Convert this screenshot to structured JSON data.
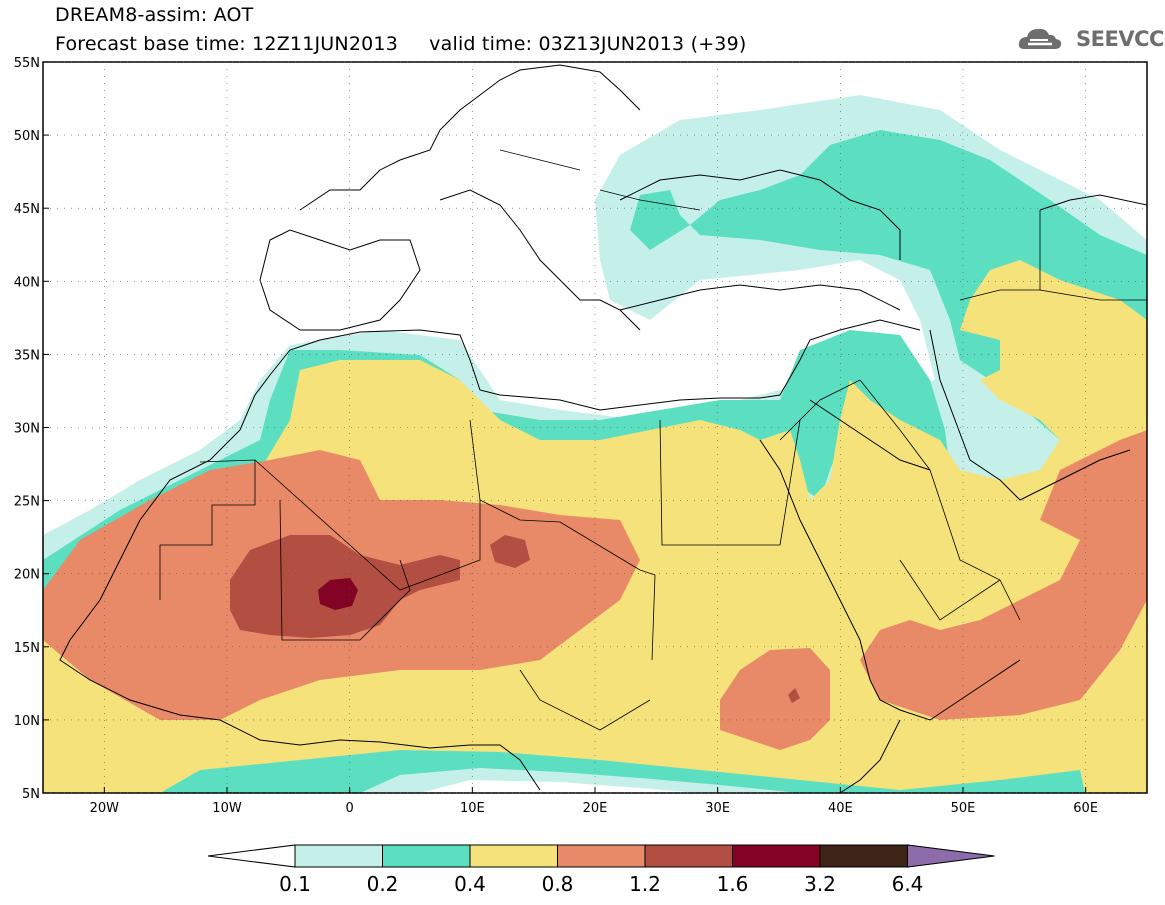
{
  "title": {
    "line1": "DREAM8-assim: AOT",
    "line2": "Forecast base time: 12Z11JUN2013     valid time: 03Z13JUN2013 (+39)"
  },
  "logo": {
    "text": "SEEVCCC",
    "icon": "cloud-icon"
  },
  "map": {
    "lon_range": [
      -25,
      65
    ],
    "lat_range": [
      5,
      55
    ],
    "lat_ticks": [
      {
        "value": 55,
        "label": "55N"
      },
      {
        "value": 50,
        "label": "50N"
      },
      {
        "value": 45,
        "label": "45N"
      },
      {
        "value": 40,
        "label": "40N"
      },
      {
        "value": 35,
        "label": "35N"
      },
      {
        "value": 30,
        "label": "30N"
      },
      {
        "value": 25,
        "label": "25N"
      },
      {
        "value": 20,
        "label": "20N"
      },
      {
        "value": 15,
        "label": "15N"
      },
      {
        "value": 10,
        "label": "10N"
      },
      {
        "value": 5,
        "label": "5N"
      }
    ],
    "lon_ticks": [
      {
        "value": -20,
        "label": "20W"
      },
      {
        "value": -10,
        "label": "10W"
      },
      {
        "value": 0,
        "label": "0"
      },
      {
        "value": 10,
        "label": "10E"
      },
      {
        "value": 20,
        "label": "20E"
      },
      {
        "value": 30,
        "label": "30E"
      },
      {
        "value": 40,
        "label": "40E"
      },
      {
        "value": 50,
        "label": "50E"
      },
      {
        "value": 60,
        "label": "60E"
      }
    ]
  },
  "colorbar": {
    "levels": [
      "0.1",
      "0.2",
      "0.4",
      "0.8",
      "1.2",
      "1.6",
      "3.2",
      "6.4"
    ],
    "colors": [
      "#ffffff",
      "#c5f0ea",
      "#5cdfc0",
      "#f5e27a",
      "#e88a68",
      "#b34e42",
      "#820323",
      "#3d2416",
      "#8e6cab"
    ]
  }
}
